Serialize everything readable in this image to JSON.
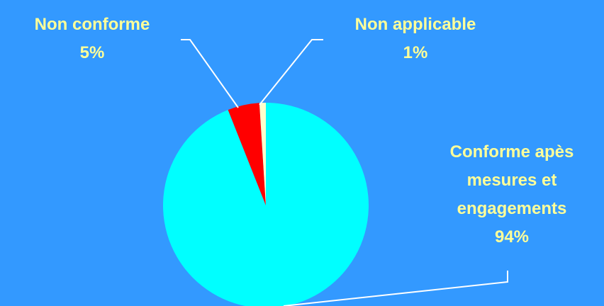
{
  "chart_data": {
    "type": "pie",
    "title": "",
    "slices": [
      {
        "name": "Conforme apès mesures et engagements",
        "label_lines": [
          "Conforme apès",
          "mesures et",
          "engagements"
        ],
        "percent_label": "94%",
        "value": 94,
        "color": "#00ffff"
      },
      {
        "name": "Non conforme",
        "label_lines": [
          "Non conforme"
        ],
        "percent_label": "5%",
        "value": 5,
        "color": "#ff0000"
      },
      {
        "name": "Non applicable",
        "label_lines": [
          "Non applicable"
        ],
        "percent_label": "1%",
        "value": 1,
        "color": "#ffffcc"
      }
    ],
    "legend": "none",
    "label_color": "#ffff99",
    "background": "#3399ff"
  }
}
